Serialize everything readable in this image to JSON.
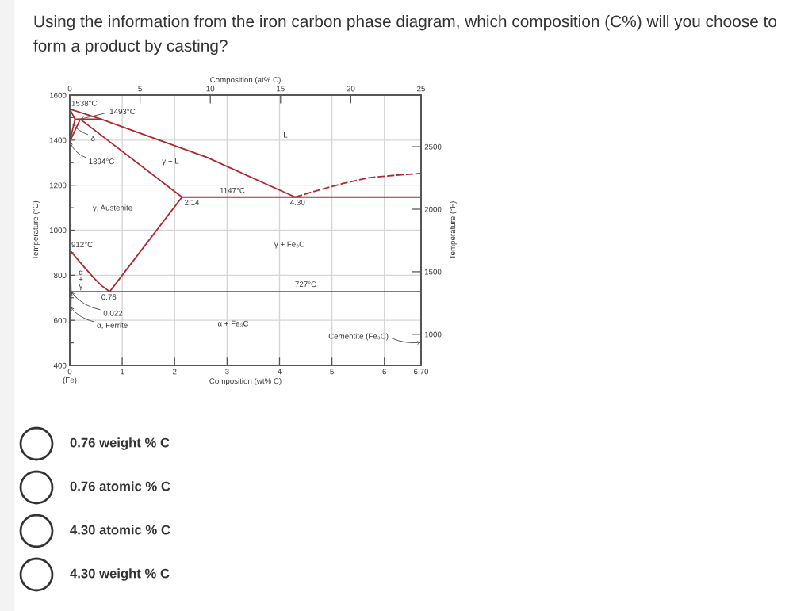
{
  "chart_data": {
    "type": "line",
    "title": "Using the information from the iron carbon phase diagram, which composition (C%) will you choose to form a product by casting?",
    "xlabel": "Composition (wt% C)",
    "x2label": "Composition (at% C)",
    "ylabel": "Temperature (°C)",
    "y2label": "Temperature (°F)",
    "xlim": [
      0,
      6.7
    ],
    "xticks": [
      {
        "value": 0,
        "label": "0\n(Fe)"
      },
      1,
      2,
      3,
      4,
      5,
      6,
      {
        "value": 6.7,
        "label": "6.70"
      }
    ],
    "x2lim": [
      0,
      25
    ],
    "x2ticks": [
      0,
      5,
      10,
      15,
      20,
      25
    ],
    "ylim": [
      400,
      1600
    ],
    "yticks": [
      400,
      {
        "value": 500,
        "label": null
      },
      600,
      {
        "value": 700,
        "label": null
      },
      800,
      {
        "value": 900,
        "label": null
      },
      1000,
      {
        "value": 1100,
        "label": null
      },
      1200,
      {
        "value": 1300,
        "label": null
      },
      1400,
      {
        "value": 1500,
        "label": null
      },
      1600
    ],
    "y2lim": [
      752,
      2912
    ],
    "y2ticks": [
      1000,
      1500,
      2000,
      2500
    ],
    "grid": true,
    "line_style": "solid",
    "series": [
      {
        "color": "#b0282d",
        "x": [
          0,
          0.6,
          2.6,
          4.3
        ],
        "values": [
          1538,
          1493,
          1325,
          1147
        ]
      },
      {
        "color": "#b0282d",
        "line_style": "dashed",
        "x": [
          4.3,
          4.7,
          5.2,
          5.7,
          6.2,
          6.7
        ],
        "values": [
          1147,
          1175,
          1207,
          1233,
          1244,
          1252
        ]
      },
      {
        "color": "#b0282d",
        "x": [
          0,
          0.1,
          0
        ],
        "values": [
          1538,
          1493,
          1394
        ]
      },
      {
        "color": "#b0282d",
        "x": [
          0.1,
          0.6
        ],
        "values": [
          1493,
          1493
        ]
      },
      {
        "color": "#b0282d",
        "x": [
          0,
          0.2,
          2.14
        ],
        "values": [
          1394,
          1493,
          1147
        ]
      },
      {
        "color": "#b0282d",
        "x": [
          2.14,
          6.7
        ],
        "values": [
          1147,
          1147
        ]
      },
      {
        "color": "#b0282d",
        "x": [
          0,
          0.15,
          0.3,
          0.45,
          0.6,
          0.76
        ],
        "values": [
          912,
          870,
          830,
          790,
          755,
          727
        ]
      },
      {
        "color": "#b0282d",
        "x": [
          0.76,
          2.14
        ],
        "values": [
          727,
          1147
        ]
      },
      {
        "color": "#b0282d",
        "x": [
          0.022,
          6.7
        ],
        "values": [
          727,
          727
        ]
      },
      {
        "color": "#b0282d",
        "x": [
          0,
          0.022,
          0.005
        ],
        "values": [
          912,
          727,
          400
        ]
      }
    ],
    "annotations": [
      {
        "text": "1538°C",
        "x": 0,
        "y": 1538
      },
      {
        "text": "1493°C",
        "x": 0.2,
        "y": 1493
      },
      {
        "text": "δ",
        "x": 0.05,
        "y": 1475
      },
      {
        "text": "1394°C",
        "x": 0,
        "y": 1394
      },
      "γ + L",
      "L",
      {
        "text": "1147°C",
        "x": 3.1,
        "y": 1147
      },
      {
        "text": "2.14",
        "x": 2.14,
        "y": 1147
      },
      {
        "text": "4.30",
        "x": 4.3,
        "y": 1147
      },
      "γ, Austenite",
      {
        "text": "912°C",
        "x": 0,
        "y": 912
      },
      "α\n+\nγ",
      {
        "text": "0.76",
        "x": 0.76,
        "y": 727
      },
      {
        "text": "0.022",
        "x": 0.022,
        "y": 727
      },
      {
        "text": "α, Ferrite",
        "x": 0.01,
        "y": 660
      },
      "γ + Fe₃C",
      {
        "text": "727°C",
        "x": 4.5,
        "y": 727
      },
      "α + Fe₃C",
      "Cementite (Fe₃C)",
      "0.76 weight % C",
      "0.76 atomic % C",
      "4.30 atomic % C",
      "4.30 weight % C"
    ]
  }
}
